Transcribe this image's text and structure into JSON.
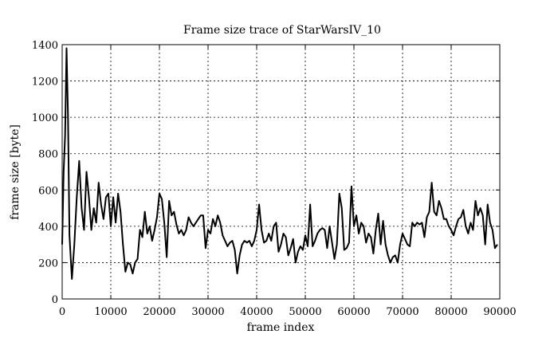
{
  "chart_data": {
    "type": "line",
    "title": "Frame size trace of StarWarsIV_10",
    "xlabel": "frame index",
    "ylabel": "frame size [byte]",
    "xlim": [
      0,
      90000
    ],
    "ylim": [
      0,
      1400
    ],
    "xticks": [
      0,
      10000,
      20000,
      30000,
      40000,
      50000,
      60000,
      70000,
      80000,
      90000
    ],
    "yticks": [
      0,
      200,
      400,
      600,
      800,
      1000,
      1200,
      1400
    ],
    "grid": true,
    "series": [
      {
        "x": [
          0,
          300,
          600,
          900,
          1200,
          1500,
          2000,
          2500,
          3000,
          3500,
          4000,
          4500,
          5000,
          5500,
          6000,
          6500,
          7000,
          7500,
          8000,
          8500,
          9000,
          9500,
          10000,
          10500,
          11000,
          11500,
          12000,
          12500,
          13000,
          13500,
          14000,
          14500,
          15000,
          15500,
          16000,
          16500,
          17000,
          17500,
          18000,
          18500,
          19000,
          19500,
          20000,
          20500,
          21000,
          21500,
          22000,
          22500,
          23000,
          23500,
          24000,
          24500,
          25000,
          25500,
          26000,
          26500,
          27000,
          27500,
          28000,
          28500,
          29000,
          29500,
          30000,
          30500,
          31000,
          31500,
          32000,
          32500,
          33000,
          33500,
          34000,
          34500,
          35000,
          35500,
          36000,
          36500,
          37000,
          37500,
          38000,
          38500,
          39000,
          39500,
          40000,
          40500,
          41000,
          41500,
          42000,
          42500,
          43000,
          43500,
          44000,
          44500,
          45000,
          45500,
          46000,
          46500,
          47000,
          47500,
          48000,
          48500,
          49000,
          49500,
          50000,
          50500,
          51000,
          51500,
          52000,
          52500,
          53000,
          53500,
          54000,
          54500,
          55000,
          55500,
          56000,
          56500,
          57000,
          57500,
          58000,
          58500,
          59000,
          59500,
          60000,
          60500,
          61000,
          61500,
          62000,
          62500,
          63000,
          63500,
          64000,
          64500,
          65000,
          65500,
          66000,
          66500,
          67000,
          67500,
          68000,
          68500,
          69000,
          69500,
          70000,
          70500,
          71000,
          71500,
          72000,
          72500,
          73000,
          73500,
          74000,
          74500,
          75000,
          75500,
          76000,
          76500,
          77000,
          77500,
          78000,
          78500,
          79000,
          79500,
          80000,
          80500,
          81000,
          81500,
          82000,
          82500,
          83000,
          83500,
          84000,
          84500,
          85000,
          85500,
          86000,
          86500,
          87000,
          87500,
          88000,
          88500,
          89000,
          89500
        ],
        "y": [
          300,
          700,
          900,
          1380,
          1000,
          350,
          110,
          300,
          560,
          760,
          500,
          380,
          700,
          560,
          380,
          500,
          420,
          640,
          520,
          440,
          560,
          580,
          400,
          560,
          420,
          580,
          480,
          300,
          150,
          200,
          190,
          140,
          200,
          220,
          380,
          340,
          480,
          360,
          400,
          320,
          380,
          450,
          580,
          550,
          420,
          230,
          540,
          460,
          480,
          410,
          360,
          380,
          350,
          380,
          450,
          420,
          400,
          420,
          440,
          460,
          460,
          280,
          380,
          360,
          440,
          400,
          460,
          420,
          350,
          320,
          290,
          310,
          320,
          270,
          140,
          240,
          300,
          320,
          310,
          320,
          290,
          320,
          380,
          520,
          380,
          310,
          320,
          360,
          320,
          400,
          420,
          260,
          300,
          360,
          340,
          240,
          280,
          330,
          200,
          260,
          290,
          270,
          350,
          290,
          520,
          290,
          320,
          360,
          380,
          390,
          380,
          280,
          400,
          310,
          220,
          300,
          580,
          500,
          270,
          280,
          310,
          620,
          400,
          460,
          360,
          420,
          400,
          310,
          360,
          340,
          250,
          380,
          470,
          300,
          430,
          300,
          240,
          200,
          230,
          240,
          200,
          300,
          360,
          330,
          300,
          290,
          420,
          400,
          420,
          410,
          420,
          340,
          450,
          480,
          640,
          480,
          460,
          540,
          500,
          440,
          440,
          400,
          380,
          350,
          400,
          440,
          450,
          490,
          400,
          360,
          420,
          380,
          540,
          460,
          500,
          460,
          300,
          520,
          420,
          380,
          280,
          300
        ]
      }
    ]
  }
}
